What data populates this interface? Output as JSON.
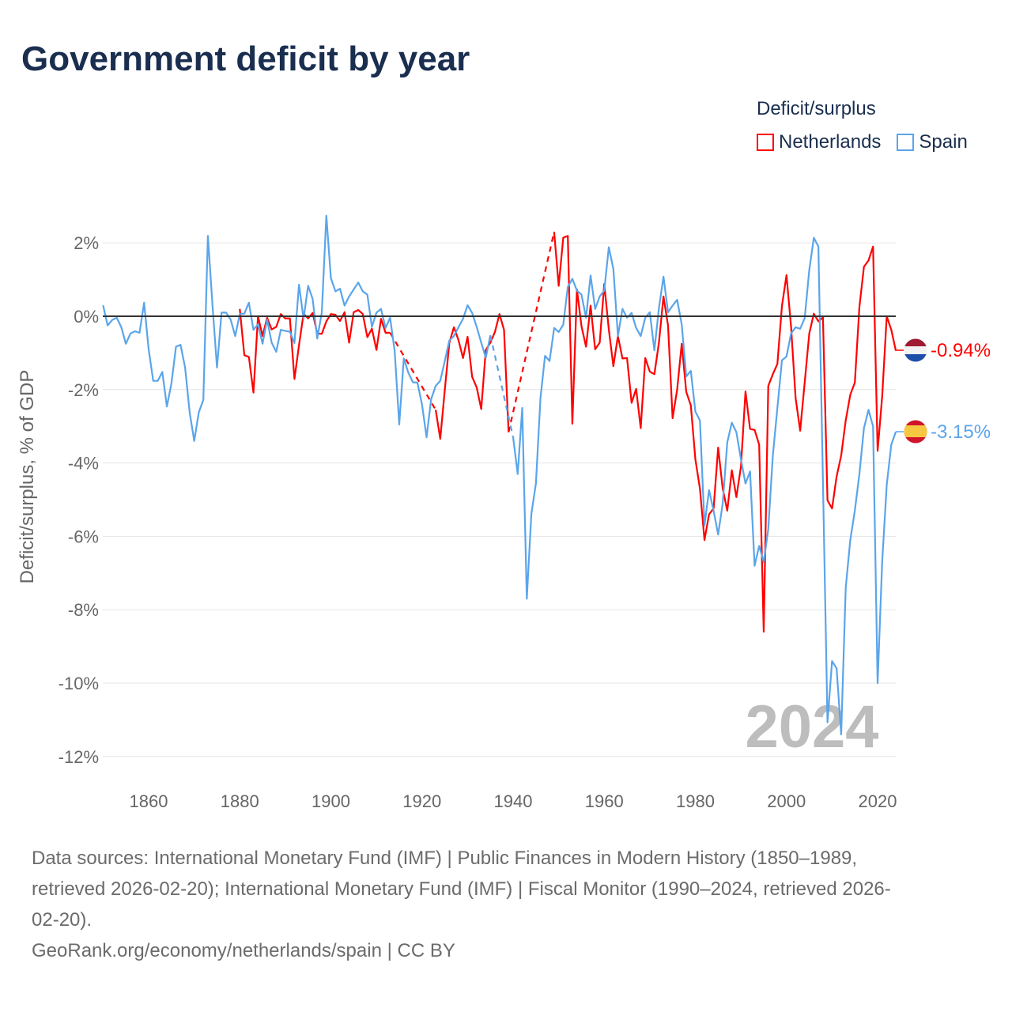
{
  "title": "Government deficit by year",
  "legend": {
    "title": "Deficit/surplus",
    "items": [
      {
        "label": "Netherlands",
        "color": "#ff0000"
      },
      {
        "label": "Spain",
        "color": "#5aa5ea"
      }
    ]
  },
  "watermark_year": "2024",
  "end_labels": {
    "netherlands": {
      "text": "-0.94%",
      "flag": "netherlands-flag-icon"
    },
    "spain": {
      "text": "-3.15%",
      "flag": "spain-flag-icon"
    }
  },
  "footer": {
    "source_lines": [
      "Data sources: International Monetary Fund (IMF) | Public Finances in Modern History (1850–1989,",
      "retrieved 2026-02-20); International Monetary Fund (IMF) | Fiscal Monitor (1990–2024, retrieved 2026-",
      "02-20)."
    ],
    "credit": "GeoRank.org/economy/netherlands/spain | CC BY"
  },
  "chart_data": {
    "type": "line",
    "title": "Government deficit by year",
    "xlabel": "",
    "ylabel": "Deficit/surplus, % of GDP",
    "xlim": [
      1850,
      2024
    ],
    "ylim": [
      -12.5,
      3
    ],
    "x_ticks": [
      "1860",
      "1880",
      "1900",
      "1920",
      "1940",
      "1960",
      "1980",
      "2000",
      "2020"
    ],
    "y_ticks": [
      {
        "value": 2,
        "label": "2%"
      },
      {
        "value": 0,
        "label": "0%"
      },
      {
        "value": -2,
        "label": "-2%"
      },
      {
        "value": -4,
        "label": "-4%"
      },
      {
        "value": -6,
        "label": "-6%"
      },
      {
        "value": -8,
        "label": "-8%"
      },
      {
        "value": -10,
        "label": "-10%"
      },
      {
        "value": -12,
        "label": "-12%"
      }
    ],
    "grid": true,
    "legend_position": "top-right",
    "series": [
      {
        "name": "Netherlands",
        "color": "#ff0000",
        "start_year": 1880,
        "values": [
          0.2,
          -1.06,
          -1.11,
          -2.08,
          0,
          -0.54,
          -0.04,
          -0.36,
          -0.29,
          0.06,
          -0.06,
          -0.06,
          -1.71,
          -0.79,
          0.07,
          -0.06,
          0.09,
          -0.47,
          -0.48,
          -0.14,
          0.06,
          0.04,
          -0.13,
          0.11,
          -0.72,
          0.11,
          0.17,
          0.06,
          -0.57,
          -0.34,
          -0.92,
          -0.07,
          -0.45,
          -0.45,
          null,
          null,
          null,
          null,
          null,
          null,
          null,
          null,
          null,
          -2.55,
          -3.34,
          -2.01,
          -0.72,
          -0.3,
          -0.65,
          -1.14,
          -0.56,
          -1.65,
          -1.94,
          -2.53,
          -0.92,
          -0.72,
          -0.43,
          0.06,
          -0.37,
          -3.16,
          null,
          null,
          null,
          null,
          null,
          null,
          null,
          null,
          null,
          2.3,
          0.83,
          2.14,
          2.19,
          -2.93,
          0.73,
          -0.27,
          -0.83,
          0.29,
          -0.9,
          -0.72,
          0.88,
          -0.36,
          -1.36,
          -0.54,
          -1.15,
          -1.14,
          -2.36,
          -1.98,
          -3.05,
          -1.14,
          -1.51,
          -1.58,
          -0.72,
          0.54,
          -0.25,
          -2.78,
          -2.0,
          -0.75,
          -2.06,
          -2.43,
          -3.9,
          -4.7,
          -6.1,
          -5.4,
          -5.24,
          -3.58,
          -4.7,
          -5.3,
          -4.2,
          -4.93,
          -4.1,
          -2.05,
          -3.07,
          -3.1,
          -3.5,
          -8.6,
          -1.9,
          -1.58,
          -1.3,
          0.28,
          1.12,
          -0.28,
          -2.23,
          -3.12,
          -1.8,
          -0.47,
          0.07,
          -0.14,
          -0.03,
          -5.02,
          -5.24,
          -4.37,
          -3.8,
          -2.84,
          -2.14,
          -1.81,
          0.25,
          1.35,
          1.52,
          1.9,
          -3.67,
          -2.19,
          0.0,
          -0.37,
          -0.94
        ]
      },
      {
        "name": "Spain",
        "color": "#5aa5ea",
        "start_year": 1850,
        "values": [
          0.3,
          -0.25,
          -0.1,
          -0.04,
          -0.3,
          -0.75,
          -0.47,
          -0.41,
          -0.45,
          0.37,
          -0.9,
          -1.76,
          -1.76,
          -1.52,
          -2.46,
          -1.83,
          -0.83,
          -0.78,
          -1.4,
          -2.62,
          -3.4,
          -2.62,
          -2.28,
          2.19,
          0.32,
          -1.4,
          0.1,
          0.1,
          -0.09,
          -0.54,
          0.06,
          0.07,
          0.37,
          -0.37,
          -0.22,
          -0.75,
          -0.09,
          -0.72,
          -0.97,
          -0.37,
          -0.4,
          -0.42,
          -0.73,
          0.86,
          -0.07,
          0.83,
          0.47,
          -0.61,
          0.1,
          2.74,
          1.04,
          0.68,
          0.75,
          0.29,
          0.54,
          0.73,
          0.92,
          0.68,
          0.59,
          -0.29,
          0.1,
          0.2,
          -0.32,
          -0.04,
          -0.95,
          -2.95,
          -1.15,
          -1.54,
          -1.8,
          -1.81,
          -2.41,
          -3.3,
          -2.26,
          -1.9,
          -1.76,
          -1.22,
          -0.66,
          -0.54,
          -0.3,
          -0.07,
          0.3,
          0.09,
          -0.29,
          -0.72,
          -1.13,
          -0.52,
          null,
          null,
          null,
          null,
          -3.3,
          -4.3,
          -2.5,
          -7.7,
          -5.39,
          -4.56,
          -2.23,
          -1.08,
          -1.22,
          -0.32,
          -0.43,
          -0.23,
          0.8,
          1.02,
          0.7,
          0.59,
          -0.04,
          1.11,
          0.2,
          0.54,
          0.7,
          1.88,
          1.29,
          -0.54,
          0.2,
          -0.04,
          0.09,
          -0.32,
          -0.54,
          -0.04,
          0.11,
          -0.93,
          0.22,
          1.08,
          0.11,
          0.29,
          0.45,
          -0.22,
          -1.64,
          -1.49,
          -2.6,
          -2.84,
          -5.7,
          -4.74,
          -5.3,
          -5.95,
          -5.1,
          -3.44,
          -2.9,
          -3.16,
          -3.9,
          -4.56,
          -4.23,
          -6.8,
          -6.26,
          -6.7,
          -5.8,
          -3.8,
          -2.5,
          -1.2,
          -1.1,
          -0.47,
          -0.3,
          -0.34,
          -0.05,
          1.26,
          2.14,
          1.9,
          -4.5,
          -11.07,
          -9.4,
          -9.6,
          -11.4,
          -7.4,
          -6.1,
          -5.3,
          -4.3,
          -3.05,
          -2.55,
          -3.0,
          -10.0,
          -6.7,
          -4.6,
          -3.5,
          -3.15
        ]
      }
    ]
  }
}
